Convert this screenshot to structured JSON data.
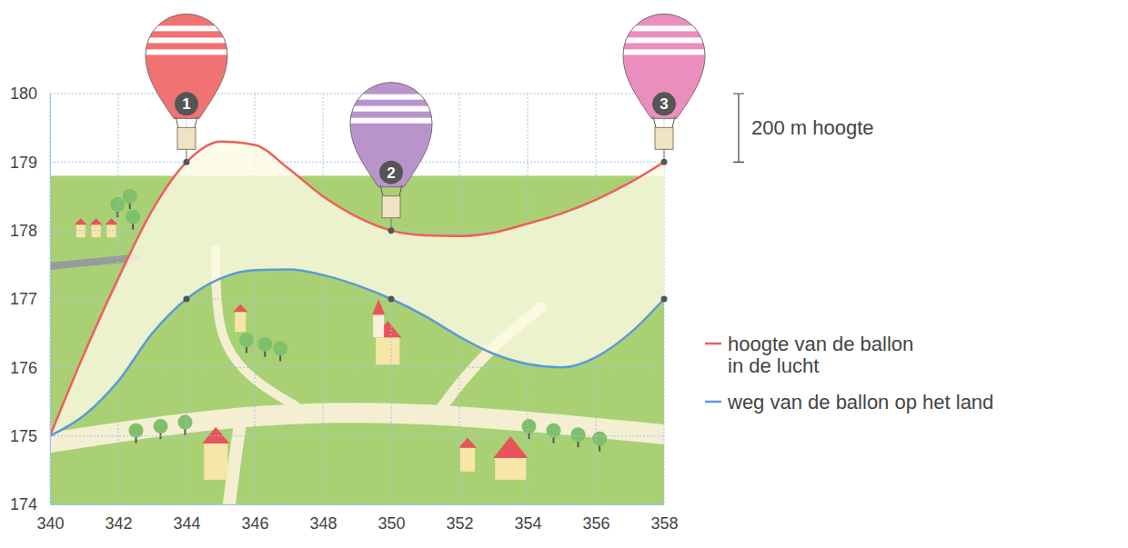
{
  "chart_data": {
    "type": "line",
    "x": [
      340,
      341,
      342,
      343,
      344,
      345,
      346,
      347,
      348,
      349,
      350,
      351,
      352,
      353,
      354,
      355,
      356,
      357,
      358
    ],
    "series": [
      {
        "name": "hoogte van de ballon in de lucht",
        "color": "#ef5f5a",
        "values": [
          175,
          176.2,
          177.3,
          178.3,
          179,
          179.3,
          179.25,
          178.9,
          178.5,
          178.2,
          178,
          177.93,
          177.92,
          177.97,
          178.1,
          178.25,
          178.45,
          178.7,
          179
        ]
      },
      {
        "name": "weg van de ballon op het land",
        "color": "#5b9bd5",
        "values": [
          175,
          175.3,
          175.8,
          176.5,
          177,
          177.3,
          177.42,
          177.43,
          177.35,
          177.2,
          177,
          176.75,
          176.45,
          176.2,
          176.05,
          176,
          176.15,
          176.5,
          177
        ]
      }
    ],
    "xlim": [
      340,
      358
    ],
    "xticks": [
      340,
      342,
      344,
      346,
      348,
      350,
      352,
      354,
      356,
      358
    ],
    "ylim": [
      174,
      180
    ],
    "yticks": [
      174,
      175,
      176,
      177,
      178,
      179,
      180
    ],
    "grid": true,
    "legend": "right",
    "balloons": [
      {
        "label": "1",
        "x": 344,
        "y": 179,
        "ground": 177,
        "color": "#f07272"
      },
      {
        "label": "2",
        "x": 350,
        "y": 178,
        "ground": 177,
        "color": "#b994cc"
      },
      {
        "label": "3",
        "x": 358,
        "y": 179,
        "ground": 177,
        "color": "#ea8fbd"
      }
    ],
    "scale_bar": {
      "label": "200 m hoogte",
      "from": 179,
      "to": 180
    }
  }
}
